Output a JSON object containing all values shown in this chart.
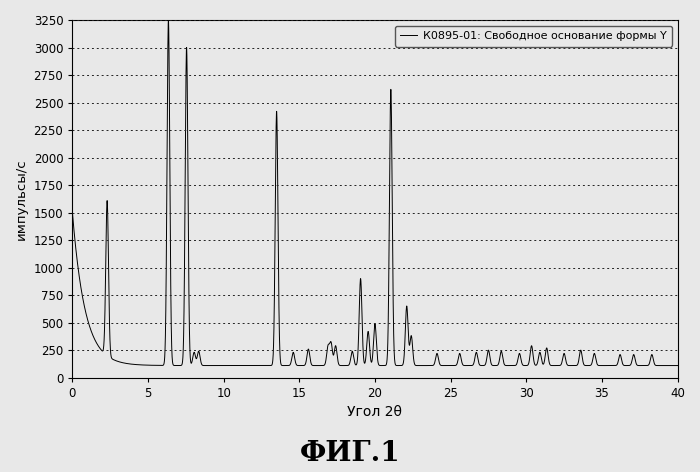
{
  "xlabel": "Угол 2θ",
  "ylabel": "импульсы/с",
  "caption": "ФИГ.1",
  "legend_label": "К0895-01: Свободное основание формы Y",
  "xlim": [
    0,
    40
  ],
  "ylim": [
    0,
    3250
  ],
  "yticks": [
    0,
    250,
    500,
    750,
    1000,
    1250,
    1500,
    1750,
    2000,
    2250,
    2500,
    2750,
    3000,
    3250
  ],
  "xticks": [
    0,
    5,
    10,
    15,
    20,
    25,
    30,
    35,
    40
  ],
  "background_color": "#e8e8e8",
  "plot_bg_color": "#e8e8e8",
  "line_color": "#000000",
  "key_peaks": [
    [
      2.3,
      1520
    ],
    [
      6.35,
      3250
    ],
    [
      7.55,
      3000
    ],
    [
      13.5,
      2420
    ],
    [
      19.05,
      900
    ],
    [
      20.0,
      490
    ],
    [
      21.05,
      2620
    ],
    [
      22.1,
      650
    ]
  ],
  "medium_peaks": [
    [
      17.1,
      310
    ],
    [
      17.4,
      290
    ],
    [
      19.55,
      420
    ],
    [
      22.4,
      380
    ],
    [
      30.35,
      290
    ],
    [
      31.35,
      270
    ]
  ],
  "small_peaks": [
    [
      8.05,
      230
    ],
    [
      8.35,
      240
    ],
    [
      14.6,
      230
    ],
    [
      15.6,
      260
    ],
    [
      16.9,
      280
    ],
    [
      18.5,
      240
    ],
    [
      24.1,
      220
    ],
    [
      25.6,
      220
    ],
    [
      26.7,
      230
    ],
    [
      27.5,
      250
    ],
    [
      28.35,
      240
    ],
    [
      29.55,
      220
    ],
    [
      30.9,
      230
    ],
    [
      32.5,
      220
    ],
    [
      33.6,
      250
    ],
    [
      34.5,
      220
    ],
    [
      36.2,
      210
    ],
    [
      37.1,
      210
    ],
    [
      38.3,
      210
    ]
  ],
  "baseline": 110,
  "bg_decay_amp": 1400,
  "bg_decay_rate": 1.2
}
